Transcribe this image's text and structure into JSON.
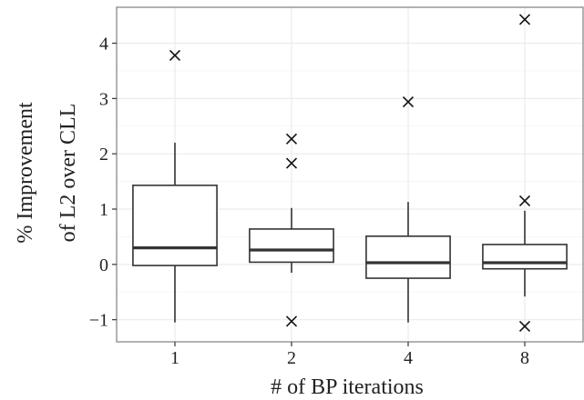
{
  "chart_data": {
    "type": "boxplot",
    "title": "",
    "xlabel": "# of BP iterations",
    "ylabel_line1": "% Improvement",
    "ylabel_line2": "of L2 over CLL",
    "categories": [
      "1",
      "2",
      "4",
      "8"
    ],
    "ylim": [
      -1.4,
      4.65
    ],
    "yticks": [
      -1,
      0,
      1,
      2,
      3,
      4
    ],
    "ytick_labels": [
      "−1",
      "0",
      "1",
      "2",
      "3",
      "4"
    ],
    "grid": true,
    "boxes": [
      {
        "category": "1",
        "whisker_low": -1.05,
        "q1": -0.02,
        "median": 0.3,
        "q3": 1.43,
        "whisker_high": 2.2,
        "outliers": [
          3.78
        ]
      },
      {
        "category": "2",
        "whisker_low": -0.15,
        "q1": 0.04,
        "median": 0.26,
        "q3": 0.64,
        "whisker_high": 1.02,
        "outliers": [
          2.27,
          1.83,
          -1.03
        ]
      },
      {
        "category": "4",
        "whisker_low": -1.05,
        "q1": -0.25,
        "median": 0.03,
        "q3": 0.51,
        "whisker_high": 1.13,
        "outliers": [
          2.94
        ]
      },
      {
        "category": "8",
        "whisker_low": -0.58,
        "q1": -0.08,
        "median": 0.03,
        "q3": 0.36,
        "whisker_high": 0.97,
        "outliers": [
          4.43,
          1.15,
          -1.12
        ]
      }
    ],
    "colors": {
      "box": "#333333",
      "grid": "#ebebeb",
      "panel_border": "#7f7f7f"
    }
  }
}
